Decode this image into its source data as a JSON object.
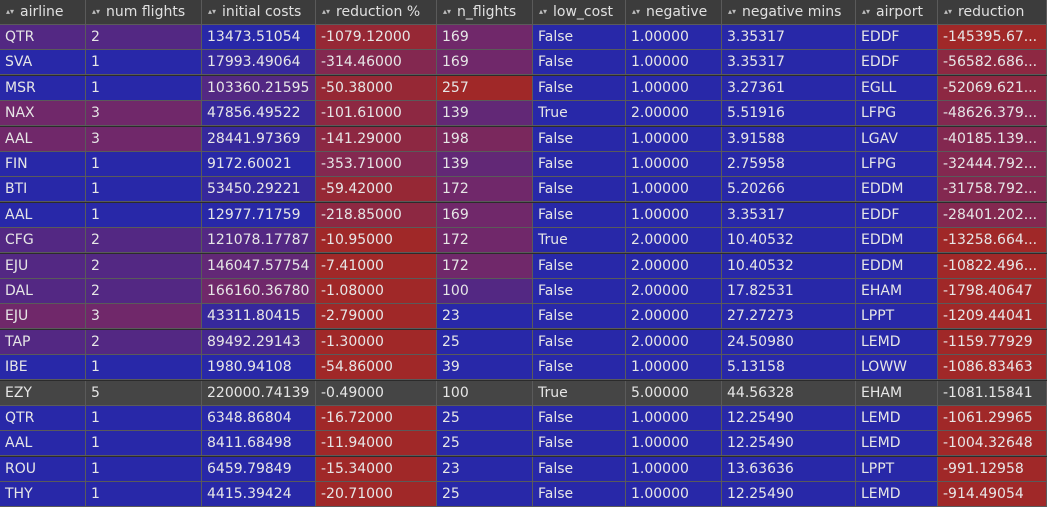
{
  "columns": [
    "airline",
    "num flights",
    "initial costs",
    "reduction %",
    "n_flights",
    "low_cost",
    "negative",
    "negative mins",
    "airport",
    "reduction"
  ],
  "sort_icon": "sort-updown-icon",
  "rows": [
    [
      "QTR",
      "2",
      "13473.51054",
      "-1079.12000",
      "169",
      "False",
      "1.00000",
      "3.35317",
      "EDDF",
      "-145395.67..."
    ],
    [
      "SVA",
      "1",
      "17993.49064",
      "-314.46000",
      "169",
      "False",
      "1.00000",
      "3.35317",
      "EDDF",
      "-56582.686..."
    ],
    [
      "MSR",
      "1",
      "103360.21595",
      "-50.38000",
      "257",
      "False",
      "1.00000",
      "3.27361",
      "EGLL",
      "-52069.621..."
    ],
    [
      "NAX",
      "3",
      "47856.49522",
      "-101.61000",
      "139",
      "True",
      "2.00000",
      "5.51916",
      "LFPG",
      "-48626.379..."
    ],
    [
      "AAL",
      "3",
      "28441.97369",
      "-141.29000",
      "198",
      "False",
      "1.00000",
      "3.91588",
      "LGAV",
      "-40185.139..."
    ],
    [
      "FIN",
      "1",
      "9172.60021",
      "-353.71000",
      "139",
      "False",
      "1.00000",
      "2.75958",
      "LFPG",
      "-32444.792..."
    ],
    [
      "BTI",
      "1",
      "53450.29221",
      "-59.42000",
      "172",
      "False",
      "1.00000",
      "5.20266",
      "EDDM",
      "-31758.792..."
    ],
    [
      "AAL",
      "1",
      "12977.71759",
      "-218.85000",
      "169",
      "False",
      "1.00000",
      "3.35317",
      "EDDF",
      "-28401.202..."
    ],
    [
      "CFG",
      "2",
      "121078.17787",
      "-10.95000",
      "172",
      "True",
      "2.00000",
      "10.40532",
      "EDDM",
      "-13258.664..."
    ],
    [
      "EJU",
      "2",
      "146047.57754",
      "-7.41000",
      "172",
      "False",
      "2.00000",
      "10.40532",
      "EDDM",
      "-10822.496..."
    ],
    [
      "DAL",
      "2",
      "166160.36780",
      "-1.08000",
      "100",
      "False",
      "2.00000",
      "17.82531",
      "EHAM",
      "-1798.40647"
    ],
    [
      "EJU",
      "3",
      "43311.80415",
      "-2.79000",
      "23",
      "False",
      "2.00000",
      "27.27273",
      "LPPT",
      "-1209.44041"
    ],
    [
      "TAP",
      "2",
      "89492.29143",
      "-1.30000",
      "25",
      "False",
      "2.00000",
      "24.50980",
      "LEMD",
      "-1159.77929"
    ],
    [
      "IBE",
      "1",
      "1980.94108",
      "-54.86000",
      "39",
      "False",
      "1.00000",
      "5.13158",
      "LOWW",
      "-1086.83463"
    ],
    [
      "EZY",
      "5",
      "220000.74139",
      "-0.49000",
      "100",
      "True",
      "5.00000",
      "44.56328",
      "EHAM",
      "-1081.15841"
    ],
    [
      "QTR",
      "1",
      "6348.86804",
      "-16.72000",
      "25",
      "False",
      "1.00000",
      "12.25490",
      "LEMD",
      "-1061.29965"
    ],
    [
      "AAL",
      "1",
      "8411.68498",
      "-11.94000",
      "25",
      "False",
      "1.00000",
      "12.25490",
      "LEMD",
      "-1004.32648"
    ],
    [
      "ROU",
      "1",
      "6459.79849",
      "-15.34000",
      "23",
      "False",
      "1.00000",
      "13.63636",
      "LPPT",
      "-991.12958"
    ],
    [
      "THY",
      "1",
      "4415.39424",
      "-20.71000",
      "25",
      "False",
      "1.00000",
      "12.25490",
      "LEMD",
      "-914.49054"
    ]
  ],
  "selected_row_index": 14,
  "colors": {
    "blue": "#2828a8",
    "purple": "#70286a",
    "red": "#a02828",
    "selected": "#454545",
    "header": "#3c3c3c"
  },
  "heat_levels": [
    [
      0.3,
      0.3,
      0.0,
      0.9,
      0.5,
      0,
      0,
      0.0,
      0,
      1.0
    ],
    [
      0.0,
      0.0,
      0.1,
      0.7,
      0.5,
      0,
      0,
      0.0,
      0,
      0.8
    ],
    [
      0.0,
      0.0,
      0.3,
      0.9,
      1.0,
      0,
      0,
      0.0,
      0,
      0.8
    ],
    [
      0.5,
      0.5,
      0.1,
      0.8,
      0.4,
      0,
      0,
      0.0,
      0,
      0.7
    ],
    [
      0.5,
      0.5,
      0.1,
      0.8,
      0.6,
      0,
      0,
      0.0,
      0,
      0.7
    ],
    [
      0.0,
      0.0,
      0.0,
      0.7,
      0.4,
      0,
      0,
      0.0,
      0,
      0.7
    ],
    [
      0.0,
      0.0,
      0.1,
      0.9,
      0.5,
      0,
      0,
      0.0,
      0,
      0.7
    ],
    [
      0.0,
      0.0,
      0.0,
      0.8,
      0.5,
      0,
      0,
      0.0,
      0,
      0.7
    ],
    [
      0.3,
      0.3,
      0.3,
      1.0,
      0.5,
      0,
      0,
      0.0,
      0,
      1.0
    ],
    [
      0.3,
      0.3,
      0.4,
      1.0,
      0.5,
      0,
      0,
      0.0,
      0,
      1.0
    ],
    [
      0.3,
      0.3,
      0.5,
      1.0,
      0.3,
      0,
      0,
      0.0,
      0,
      1.0
    ],
    [
      0.5,
      0.5,
      0.1,
      1.0,
      0.0,
      0,
      0,
      0.0,
      0,
      1.0
    ],
    [
      0.3,
      0.3,
      0.2,
      1.0,
      0.0,
      0,
      0,
      0.0,
      0,
      1.0
    ],
    [
      0.0,
      0.0,
      0.0,
      1.0,
      0.0,
      0,
      0,
      0.0,
      0,
      1.0
    ],
    [
      0,
      0,
      0,
      0,
      0,
      0,
      0,
      0,
      0,
      0
    ],
    [
      0.0,
      0.0,
      0.0,
      1.0,
      0.0,
      0,
      0,
      0.0,
      0,
      1.0
    ],
    [
      0.0,
      0.0,
      0.0,
      1.0,
      0.0,
      0,
      0,
      0.0,
      0,
      1.0
    ],
    [
      0.0,
      0.0,
      0.0,
      1.0,
      0.0,
      0,
      0,
      0.0,
      0,
      1.0
    ],
    [
      0.0,
      0.0,
      0.0,
      1.0,
      0.0,
      0,
      0,
      0.0,
      0,
      1.0
    ]
  ]
}
